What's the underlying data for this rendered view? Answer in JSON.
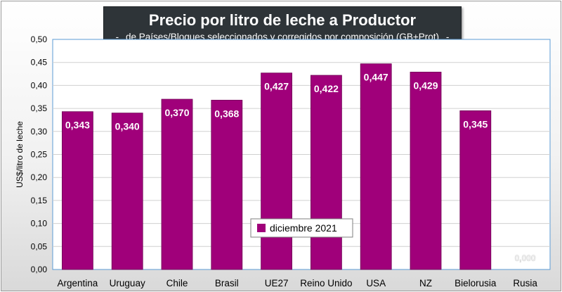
{
  "title": "Precio por litro de leche a Productor",
  "subtitle": "de Países/Bloques seleccionados y corregidos por composición (GB+Prot)",
  "subtitle_dash": "-",
  "colors": {
    "bar": "#A0007A",
    "bar_edge": "#6e0054",
    "plot_border": "#5b9bd5",
    "title_bg": "#2e3438"
  },
  "chart_data": {
    "type": "bar",
    "title": "Precio por litro de leche a Productor",
    "subtitle": "de Países/Bloques seleccionados y corregidos por composición (GB+Prot)",
    "xlabel": "",
    "ylabel": "US$/litro de leche",
    "ylim": [
      0,
      0.5
    ],
    "ytick_step": 0.05,
    "yticks": [
      "0,00",
      "0,05",
      "0,10",
      "0,15",
      "0,20",
      "0,25",
      "0,30",
      "0,35",
      "0,40",
      "0,45",
      "0,50"
    ],
    "grid": true,
    "legend": "center",
    "categories": [
      "Argentina",
      "Uruguay",
      "Chile",
      "Brasil",
      "UE27",
      "Reino Unido",
      "USA",
      "NZ",
      "Bielorusia",
      "Rusia"
    ],
    "series": [
      {
        "name": "diciembre 2021",
        "values": [
          0.343,
          0.34,
          0.37,
          0.368,
          0.427,
          0.422,
          0.447,
          0.429,
          0.345,
          0.0
        ],
        "labels": [
          "0,343",
          "0,340",
          "0,370",
          "0,368",
          "0,427",
          "0,422",
          "0,447",
          "0,429",
          "0,345",
          "0,000"
        ]
      }
    ]
  }
}
